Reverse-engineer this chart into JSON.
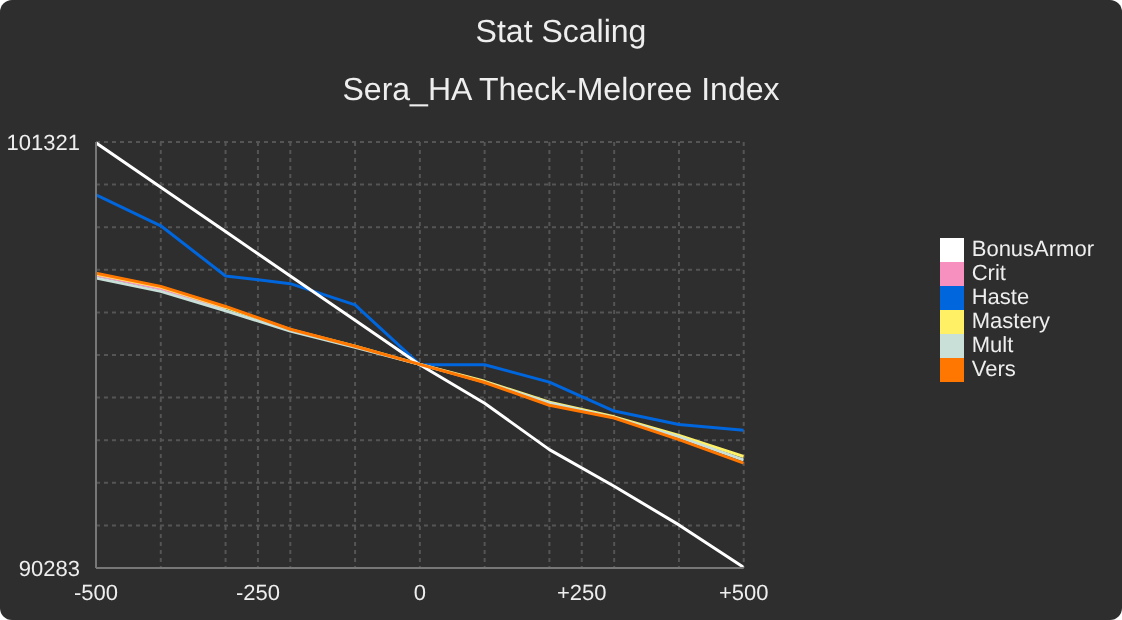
{
  "chart_data": {
    "type": "line",
    "title": "Stat Scaling",
    "subtitle": "Sera_HA Theck-Meloree Index",
    "x": [
      -500,
      -400,
      -300,
      -200,
      -100,
      0,
      100,
      200,
      300,
      400,
      500
    ],
    "series": [
      {
        "name": "Crit",
        "color": "#f78fbf",
        "values": [
          97870,
          97520,
          97000,
          null,
          null,
          null,
          null,
          null,
          null,
          null,
          null
        ]
      },
      {
        "name": "Haste",
        "color": "#0066dd",
        "values": [
          99950,
          99150,
          97850,
          97650,
          97100,
          95550,
          95550,
          95100,
          94350,
          94000,
          93850
        ]
      },
      {
        "name": "Mastery",
        "color": "#fff066",
        "values": [
          97900,
          97560,
          97040,
          96460,
          96030,
          95560,
          95120,
          94580,
          94200,
          93720,
          93170
        ]
      },
      {
        "name": "BonusArmor",
        "color": "#ffffff",
        "values": [
          101300,
          100150,
          99000,
          97850,
          96700,
          95550,
          94550,
          93350,
          92400,
          91400,
          90300
        ]
      },
      {
        "name": "Mult",
        "color": "#c8e0d8",
        "values": [
          97800,
          97450,
          96950,
          96420,
          96000,
          95560,
          95100,
          94560,
          94180,
          93680,
          93080
        ]
      },
      {
        "name": "Vers",
        "color": "#ff7700",
        "values": [
          97920,
          97580,
          97060,
          96470,
          96030,
          95560,
          95090,
          94500,
          94170,
          93610,
          93000
        ]
      }
    ],
    "xlim": [
      -500,
      500
    ],
    "xticks": [
      -500,
      {
        "value": -400,
        "label": null
      },
      {
        "value": -300,
        "label": null
      },
      -250,
      {
        "value": -200,
        "label": null
      },
      {
        "value": -100,
        "label": null
      },
      0,
      {
        "value": 100,
        "label": null
      },
      {
        "value": 200,
        "label": null
      },
      {
        "value": 250,
        "label": "+250"
      },
      {
        "value": 300,
        "label": null
      },
      {
        "value": 400,
        "label": null
      },
      {
        "value": 500,
        "label": "+500"
      }
    ],
    "ylim": [
      90283,
      101321
    ],
    "yticks": [
      90283,
      {
        "value": 91386.8,
        "label": null
      },
      {
        "value": 92490.6,
        "label": null
      },
      {
        "value": 93594.4,
        "label": null
      },
      {
        "value": 94698.2,
        "label": null
      },
      {
        "value": 95802,
        "label": null
      },
      {
        "value": 96905.8,
        "label": null
      },
      {
        "value": 98009.6,
        "label": null
      },
      {
        "value": 99113.4,
        "label": null
      },
      {
        "value": 100217.2,
        "label": null
      },
      101321
    ],
    "grid": true,
    "legend": "right",
    "marker": "none",
    "line_style": "solid"
  }
}
